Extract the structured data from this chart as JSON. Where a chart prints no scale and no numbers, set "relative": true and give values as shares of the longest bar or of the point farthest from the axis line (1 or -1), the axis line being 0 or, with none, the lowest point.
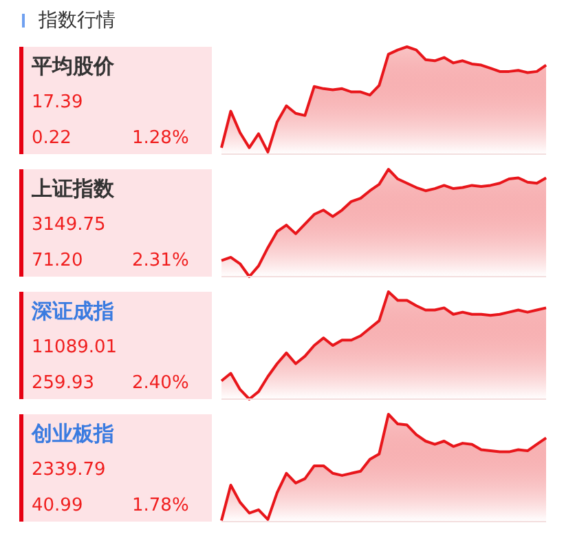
{
  "chart_data": [
    {
      "type": "other",
      "title": "指数行情"
    },
    {
      "type": "area",
      "relative": true,
      "title": "平均股价",
      "annotations": [
        "17.39",
        "0.22",
        "1.28%"
      ],
      "categories": [
        null,
        null,
        null,
        null,
        null,
        null,
        null,
        null,
        null,
        null,
        null,
        null,
        null,
        null,
        null,
        null,
        null,
        null,
        null,
        null,
        null,
        null,
        null,
        null,
        null,
        null,
        null,
        null,
        null,
        null,
        null,
        null,
        null,
        null,
        null,
        null
      ],
      "series": [
        {
          "color": "#e8161b",
          "values": [
            0.06,
            0.4,
            0.2,
            0.06,
            0.19,
            0.02,
            0.3,
            0.45,
            0.38,
            0.36,
            0.63,
            0.61,
            0.6,
            0.61,
            0.58,
            0.58,
            0.55,
            0.64,
            0.93,
            0.97,
            1,
            0.97,
            0.88,
            0.87,
            0.9,
            0.85,
            0.87,
            0.84,
            0.83,
            0.8,
            0.77,
            0.77,
            0.78,
            0.76,
            0.77,
            0.83
          ]
        }
      ]
    },
    {
      "type": "area",
      "relative": true,
      "title": "上证指数",
      "annotations": [
        "3149.75",
        "71.20",
        "2.31%"
      ],
      "categories": [
        null,
        null,
        null,
        null,
        null,
        null,
        null,
        null,
        null,
        null,
        null,
        null,
        null,
        null,
        null,
        null,
        null,
        null,
        null,
        null,
        null,
        null,
        null,
        null,
        null,
        null,
        null,
        null,
        null,
        null,
        null,
        null,
        null,
        null,
        null,
        null
      ],
      "series": [
        {
          "color": "#e8161b",
          "values": [
            0.15,
            0.18,
            0.12,
            0,
            0.1,
            0.27,
            0.42,
            0.48,
            0.4,
            0.49,
            0.58,
            0.62,
            0.56,
            0.62,
            0.7,
            0.73,
            0.8,
            0.86,
            1,
            0.91,
            0.87,
            0.83,
            0.8,
            0.82,
            0.85,
            0.82,
            0.83,
            0.85,
            0.84,
            0.85,
            0.87,
            0.91,
            0.92,
            0.88,
            0.87,
            0.92
          ]
        }
      ]
    },
    {
      "type": "area",
      "relative": true,
      "title": "深证成指",
      "annotations": [
        "11089.01",
        "259.93",
        "2.40%"
      ],
      "categories": [
        null,
        null,
        null,
        null,
        null,
        null,
        null,
        null,
        null,
        null,
        null,
        null,
        null,
        null,
        null,
        null,
        null,
        null,
        null,
        null,
        null,
        null,
        null,
        null,
        null,
        null,
        null,
        null,
        null,
        null,
        null,
        null,
        null,
        null,
        null,
        null
      ],
      "series": [
        {
          "color": "#e8161b",
          "values": [
            0.17,
            0.24,
            0.09,
            0,
            0.07,
            0.21,
            0.33,
            0.43,
            0.33,
            0.4,
            0.5,
            0.57,
            0.5,
            0.55,
            0.55,
            0.59,
            0.66,
            0.73,
            1,
            0.92,
            0.92,
            0.87,
            0.83,
            0.83,
            0.85,
            0.79,
            0.81,
            0.79,
            0.79,
            0.78,
            0.79,
            0.81,
            0.83,
            0.81,
            0.83,
            0.85
          ]
        }
      ]
    },
    {
      "type": "area",
      "relative": true,
      "title": "创业板指",
      "annotations": [
        "2339.79",
        "40.99",
        "1.78%"
      ],
      "categories": [
        null,
        null,
        null,
        null,
        null,
        null,
        null,
        null,
        null,
        null,
        null,
        null,
        null,
        null,
        null,
        null,
        null,
        null,
        null,
        null,
        null,
        null,
        null,
        null,
        null,
        null,
        null,
        null,
        null,
        null,
        null,
        null,
        null,
        null,
        null,
        null
      ],
      "series": [
        {
          "color": "#e8161b",
          "values": [
            0.01,
            0.34,
            0.18,
            0.08,
            0.11,
            0.02,
            0.27,
            0.45,
            0.36,
            0.4,
            0.52,
            0.52,
            0.45,
            0.43,
            0.45,
            0.47,
            0.58,
            0.63,
            1,
            0.91,
            0.9,
            0.81,
            0.75,
            0.72,
            0.75,
            0.7,
            0.73,
            0.72,
            0.67,
            0.66,
            0.65,
            0.65,
            0.67,
            0.66,
            0.72,
            0.78
          ]
        }
      ]
    }
  ]
}
